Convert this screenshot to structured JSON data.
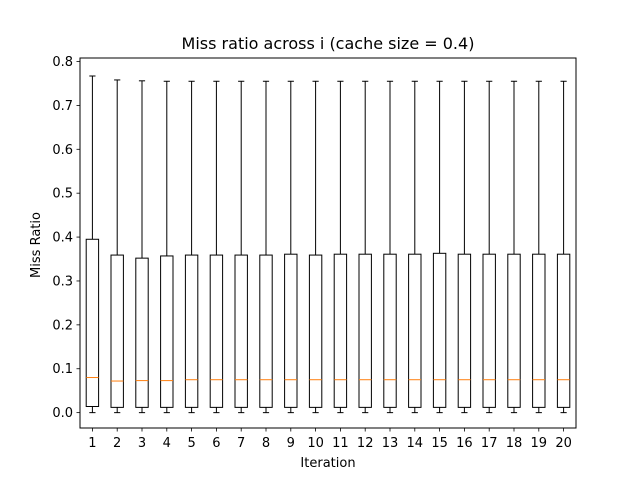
{
  "chart_data": {
    "type": "boxplot",
    "title": "Miss ratio across i (cache size = 0.4)",
    "xlabel": "Iteration",
    "ylabel": "Miss Ratio",
    "ylim": [
      -0.035,
      0.808
    ],
    "yticks": [
      0.0,
      0.1,
      0.2,
      0.3,
      0.4,
      0.5,
      0.6,
      0.7,
      0.8
    ],
    "ytick_labels": [
      "0.0",
      "0.1",
      "0.2",
      "0.3",
      "0.4",
      "0.5",
      "0.6",
      "0.7",
      "0.8"
    ],
    "categories": [
      "1",
      "2",
      "3",
      "4",
      "5",
      "6",
      "7",
      "8",
      "9",
      "10",
      "11",
      "12",
      "13",
      "14",
      "15",
      "16",
      "17",
      "18",
      "19",
      "20"
    ],
    "grid": false,
    "colors": {
      "box": "#000000",
      "median": "#ff7f0e"
    },
    "series": [
      {
        "boxes": [
          {
            "whislo": 0.0,
            "q1": 0.014,
            "med": 0.08,
            "q3": 0.395,
            "whishi": 0.767
          },
          {
            "whislo": 0.0,
            "q1": 0.012,
            "med": 0.072,
            "q3": 0.359,
            "whishi": 0.758
          },
          {
            "whislo": 0.0,
            "q1": 0.012,
            "med": 0.073,
            "q3": 0.352,
            "whishi": 0.756
          },
          {
            "whislo": 0.0,
            "q1": 0.012,
            "med": 0.073,
            "q3": 0.357,
            "whishi": 0.755
          },
          {
            "whislo": 0.0,
            "q1": 0.012,
            "med": 0.075,
            "q3": 0.359,
            "whishi": 0.755
          },
          {
            "whislo": 0.0,
            "q1": 0.012,
            "med": 0.075,
            "q3": 0.359,
            "whishi": 0.755
          },
          {
            "whislo": 0.0,
            "q1": 0.012,
            "med": 0.075,
            "q3": 0.359,
            "whishi": 0.755
          },
          {
            "whislo": 0.0,
            "q1": 0.012,
            "med": 0.075,
            "q3": 0.359,
            "whishi": 0.755
          },
          {
            "whislo": 0.0,
            "q1": 0.012,
            "med": 0.075,
            "q3": 0.361,
            "whishi": 0.755
          },
          {
            "whislo": 0.0,
            "q1": 0.012,
            "med": 0.075,
            "q3": 0.359,
            "whishi": 0.755
          },
          {
            "whislo": 0.0,
            "q1": 0.012,
            "med": 0.075,
            "q3": 0.361,
            "whishi": 0.755
          },
          {
            "whislo": 0.0,
            "q1": 0.012,
            "med": 0.075,
            "q3": 0.361,
            "whishi": 0.755
          },
          {
            "whislo": 0.0,
            "q1": 0.012,
            "med": 0.075,
            "q3": 0.361,
            "whishi": 0.755
          },
          {
            "whislo": 0.0,
            "q1": 0.012,
            "med": 0.075,
            "q3": 0.361,
            "whishi": 0.755
          },
          {
            "whislo": 0.0,
            "q1": 0.012,
            "med": 0.075,
            "q3": 0.363,
            "whishi": 0.755
          },
          {
            "whislo": 0.0,
            "q1": 0.012,
            "med": 0.075,
            "q3": 0.361,
            "whishi": 0.755
          },
          {
            "whislo": 0.0,
            "q1": 0.012,
            "med": 0.075,
            "q3": 0.361,
            "whishi": 0.755
          },
          {
            "whislo": 0.0,
            "q1": 0.012,
            "med": 0.075,
            "q3": 0.361,
            "whishi": 0.755
          },
          {
            "whislo": 0.0,
            "q1": 0.012,
            "med": 0.075,
            "q3": 0.361,
            "whishi": 0.755
          },
          {
            "whislo": 0.0,
            "q1": 0.012,
            "med": 0.075,
            "q3": 0.361,
            "whishi": 0.755
          }
        ]
      }
    ]
  }
}
